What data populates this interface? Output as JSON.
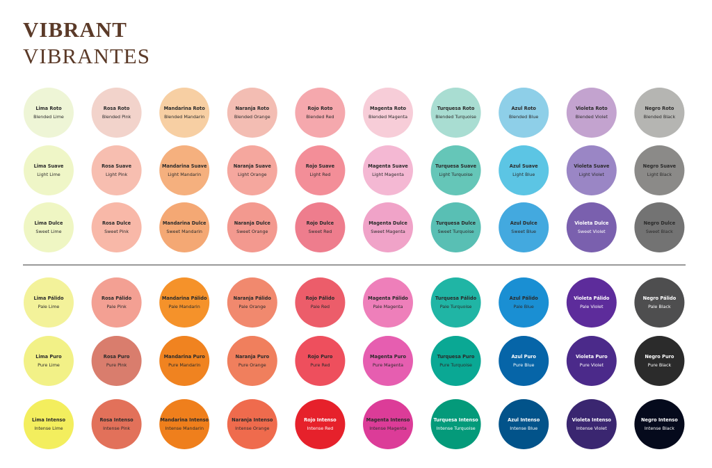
{
  "header": {
    "title": "VIBRANT",
    "subtitle": "VIBRANTES"
  },
  "rows": [
    {
      "swatches": [
        {
          "name": "Lima Roto",
          "label": "Blended Lime",
          "color": "#eef5d6"
        },
        {
          "name": "Rosa Roto",
          "label": "Blended Pink",
          "color": "#f2d3cb"
        },
        {
          "name": "Mandarina Roto",
          "label": "Blended Mandarin",
          "color": "#f7cfa3"
        },
        {
          "name": "Naranja Roto",
          "label": "Blended Orange",
          "color": "#f3bdb3"
        },
        {
          "name": "Rojo Roto",
          "label": "Blended Red",
          "color": "#f5a8ad"
        },
        {
          "name": "Magenta Roto",
          "label": "Blended Magenta",
          "color": "#f7cdd8"
        },
        {
          "name": "Turquesa Roto",
          "label": "Blended Turquoise",
          "color": "#a9ddd2"
        },
        {
          "name": "Azul Roto",
          "label": "Blended Blue",
          "color": "#8ecfe8"
        },
        {
          "name": "Violeta Roto",
          "label": "Blended Violet",
          "color": "#c3a3cf"
        },
        {
          "name": "Negro Roto",
          "label": "Blended Black",
          "color": "#b5b5b2"
        }
      ]
    },
    {
      "swatches": [
        {
          "name": "Lima Suave",
          "label": "Light Lime",
          "color": "#eff6c7"
        },
        {
          "name": "Rosa Suave",
          "label": "Light Pink",
          "color": "#f7beb0"
        },
        {
          "name": "Mandarina Suave",
          "label": "Light Mandarin",
          "color": "#f5b07e"
        },
        {
          "name": "Naranja Suave",
          "label": "Light Orange",
          "color": "#f5a79e"
        },
        {
          "name": "Rojo Suave",
          "label": "Light Red",
          "color": "#f38e98"
        },
        {
          "name": "Magenta Suave",
          "label": "Light Magenta",
          "color": "#f4b8d3"
        },
        {
          "name": "Turquesa Suave",
          "label": "Light Turquoise",
          "color": "#65c6b8"
        },
        {
          "name": "Azul Suave",
          "label": "Light Blue",
          "color": "#5cc5e4"
        },
        {
          "name": "Violeta Suave",
          "label": "Light Violet",
          "color": "#9a86c5"
        },
        {
          "name": "Negro Suave",
          "label": "Light Black",
          "color": "#8b8a88"
        }
      ]
    },
    {
      "swatches": [
        {
          "name": "Lima Dulce",
          "label": "Sweet Lime",
          "color": "#eff6c3"
        },
        {
          "name": "Rosa Dulce",
          "label": "Sweet Pink",
          "color": "#f8b8a8"
        },
        {
          "name": "Mandarina Dulce",
          "label": "Sweet Mandarin",
          "color": "#f4a874"
        },
        {
          "name": "Naranja Dulce",
          "label": "Sweet Orange",
          "color": "#f3998f"
        },
        {
          "name": "Rojo Dulce",
          "label": "Sweet Red",
          "color": "#ee7d8d"
        },
        {
          "name": "Magenta Dulce",
          "label": "Sweet Magenta",
          "color": "#f0a3c8"
        },
        {
          "name": "Turquesa Dulce",
          "label": "Sweet Turquoise",
          "color": "#59bfb4"
        },
        {
          "name": "Azul Dulce",
          "label": "Sweet Blue",
          "color": "#43a9df"
        },
        {
          "name": "Violeta Dulce",
          "label": "Sweet Violet",
          "color": "#7a60ae"
        },
        {
          "name": "Negro Dulce",
          "label": "Sweet Black",
          "color": "#737373"
        }
      ]
    },
    {
      "swatches": [
        {
          "name": "Lima Pálido",
          "label": "Pale Lime",
          "color": "#f3f29a"
        },
        {
          "name": "Rosa Pálido",
          "label": "Pale Pink",
          "color": "#f3a093"
        },
        {
          "name": "Mandarina Pálido",
          "label": "Pale Mandarin",
          "color": "#f5922a"
        },
        {
          "name": "Naranja Pálido",
          "label": "Pale Orange",
          "color": "#f1896e"
        },
        {
          "name": "Rojo Pálido",
          "label": "Pale Red",
          "color": "#ec5d6a"
        },
        {
          "name": "Magenta Pálido",
          "label": "Pale Magenta",
          "color": "#ee7fba"
        },
        {
          "name": "Turquesa Pálido",
          "label": "Pale Turquoise",
          "color": "#20b5a5"
        },
        {
          "name": "Azul Pálido",
          "label": "Pale Blue",
          "color": "#1a8fd3"
        },
        {
          "name": "Violeta Pálido",
          "label": "Pale Violet",
          "color": "#5d2c9b"
        },
        {
          "name": "Negro Pálido",
          "label": "Pale Black",
          "color": "#4e4e4f"
        }
      ]
    },
    {
      "swatches": [
        {
          "name": "Lima Puro",
          "label": "Pure Lime",
          "color": "#f2f187"
        },
        {
          "name": "Rosa Puro",
          "label": "Pure Pink",
          "color": "#d97d6d"
        },
        {
          "name": "Mandarina Puro",
          "label": "Pure Mandarin",
          "color": "#f08320"
        },
        {
          "name": "Naranja Puro",
          "label": "Pure Orange",
          "color": "#f07f5d"
        },
        {
          "name": "Rojo Puro",
          "label": "Pure Red",
          "color": "#ee4f5d"
        },
        {
          "name": "Magenta Puro",
          "label": "Pure Magenta",
          "color": "#e65eb0"
        },
        {
          "name": "Turquesa Puro",
          "label": "Pure Turquoise",
          "color": "#0aa894"
        },
        {
          "name": "Azul Puro",
          "label": "Pure Blue",
          "color": "#0665a8"
        },
        {
          "name": "Violeta Puro",
          "label": "Pure Violet",
          "color": "#4b2a8a"
        },
        {
          "name": "Negro Puro",
          "label": "Pure Black",
          "color": "#2b2b2b"
        }
      ]
    },
    {
      "swatches": [
        {
          "name": "Lima Intenso",
          "label": "Intense Lime",
          "color": "#f3ee5e"
        },
        {
          "name": "Rosa Intenso",
          "label": "Intense Pink",
          "color": "#e2715a"
        },
        {
          "name": "Mandarina Intenso",
          "label": "Intense Mandarin",
          "color": "#ef7f1c"
        },
        {
          "name": "Naranja Intenso",
          "label": "Intense Orange",
          "color": "#ef6b4d"
        },
        {
          "name": "Rojo Intenso",
          "label": "Intense Red",
          "color": "#e6212b"
        },
        {
          "name": "Magenta Intenso",
          "label": "Intense Magenta",
          "color": "#dc3c98"
        },
        {
          "name": "Turquesa Intenso",
          "label": "Intense Turquoise",
          "color": "#049a7a"
        },
        {
          "name": "Azul Intenso",
          "label": "Intense Blue",
          "color": "#02538a"
        },
        {
          "name": "Violeta Intenso",
          "label": "Intense Violet",
          "color": "#3a2670"
        },
        {
          "name": "Negro Intenso",
          "label": "Intense Black",
          "color": "#050a1c"
        }
      ]
    }
  ]
}
